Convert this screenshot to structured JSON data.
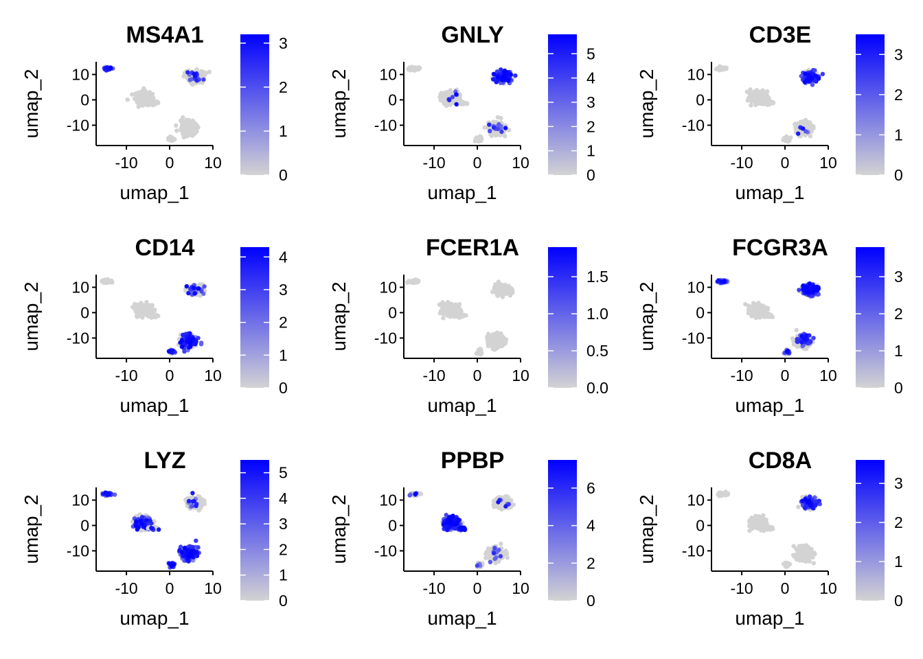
{
  "chart_data": [
    {
      "type": "scatter",
      "title": "MS4A1",
      "xlabel": "umap_1",
      "ylabel": "umap_2",
      "xlim": [
        -17,
        10
      ],
      "ylim": [
        -18,
        15
      ],
      "xticks": [
        -10,
        0,
        10
      ],
      "yticks": [
        -10,
        0,
        10
      ],
      "legend": {
        "type": "colorbar",
        "position": "right",
        "low_color": "#D3D3D3",
        "high_color": "#0000FF",
        "min": 0,
        "max": 3.2,
        "ticks": [
          0,
          1,
          2,
          3
        ]
      },
      "expression_clusters": [
        {
          "cluster": "top-left",
          "level": 0.9
        },
        {
          "cluster": "top-right",
          "level": 0.05
        },
        {
          "cluster": "center",
          "level": 0
        },
        {
          "cluster": "bottom-right",
          "level": 0
        },
        {
          "cluster": "bottom-small",
          "level": 0
        }
      ]
    },
    {
      "type": "scatter",
      "title": "GNLY",
      "xlabel": "umap_1",
      "ylabel": "umap_2",
      "xlim": [
        -17,
        10
      ],
      "ylim": [
        -18,
        15
      ],
      "xticks": [
        -10,
        0,
        10
      ],
      "yticks": [
        -10,
        0,
        10
      ],
      "legend": {
        "type": "colorbar",
        "position": "right",
        "low_color": "#D3D3D3",
        "high_color": "#0000FF",
        "min": 0,
        "max": 5.8,
        "ticks": [
          0,
          1,
          2,
          3,
          4,
          5
        ]
      },
      "expression_clusters": [
        {
          "cluster": "top-left",
          "level": 0
        },
        {
          "cluster": "top-right",
          "level": 0.7
        },
        {
          "cluster": "center",
          "level": 0.02
        },
        {
          "cluster": "bottom-right",
          "level": 0.05
        },
        {
          "cluster": "bottom-small",
          "level": 0
        }
      ]
    },
    {
      "type": "scatter",
      "title": "CD3E",
      "xlabel": "umap_1",
      "ylabel": "umap_2",
      "xlim": [
        -17,
        10
      ],
      "ylim": [
        -18,
        15
      ],
      "xticks": [
        -10,
        0,
        10
      ],
      "yticks": [
        -10,
        0,
        10
      ],
      "legend": {
        "type": "colorbar",
        "position": "right",
        "low_color": "#D3D3D3",
        "high_color": "#0000FF",
        "min": 0,
        "max": 3.5,
        "ticks": [
          0,
          1,
          2,
          3
        ]
      },
      "expression_clusters": [
        {
          "cluster": "top-left",
          "level": 0
        },
        {
          "cluster": "top-right",
          "level": 0.55
        },
        {
          "cluster": "center",
          "level": 0
        },
        {
          "cluster": "bottom-right",
          "level": 0.03
        },
        {
          "cluster": "bottom-small",
          "level": 0
        }
      ]
    },
    {
      "type": "scatter",
      "title": "CD14",
      "xlabel": "umap_1",
      "ylabel": "umap_2",
      "xlim": [
        -17,
        10
      ],
      "ylim": [
        -18,
        15
      ],
      "xticks": [
        -10,
        0,
        10
      ],
      "yticks": [
        -10,
        0,
        10
      ],
      "legend": {
        "type": "colorbar",
        "position": "right",
        "low_color": "#D3D3D3",
        "high_color": "#0000FF",
        "min": 0,
        "max": 4.3,
        "ticks": [
          0,
          1,
          2,
          3,
          4
        ]
      },
      "expression_clusters": [
        {
          "cluster": "top-left",
          "level": 0
        },
        {
          "cluster": "top-right",
          "level": 0.1
        },
        {
          "cluster": "center",
          "level": 0
        },
        {
          "cluster": "bottom-right",
          "level": 0.6
        },
        {
          "cluster": "bottom-small",
          "level": 0.3
        }
      ]
    },
    {
      "type": "scatter",
      "title": "FCER1A",
      "xlabel": "umap_1",
      "ylabel": "umap_2",
      "xlim": [
        -17,
        10
      ],
      "ylim": [
        -18,
        15
      ],
      "xticks": [
        -10,
        0,
        10
      ],
      "yticks": [
        -10,
        0,
        10
      ],
      "legend": {
        "type": "colorbar",
        "position": "right",
        "low_color": "#D3D3D3",
        "high_color": "#0000FF",
        "min": 0,
        "max": 1.9,
        "ticks": [
          "0.0",
          "0.5",
          "1.0",
          "1.5"
        ]
      },
      "expression_clusters": [
        {
          "cluster": "top-left",
          "level": 0
        },
        {
          "cluster": "top-right",
          "level": 0
        },
        {
          "cluster": "center",
          "level": 0
        },
        {
          "cluster": "bottom-right",
          "level": 0
        },
        {
          "cluster": "bottom-small",
          "level": 0
        }
      ]
    },
    {
      "type": "scatter",
      "title": "FCGR3A",
      "xlabel": "umap_1",
      "ylabel": "umap_2",
      "xlim": [
        -17,
        10
      ],
      "ylim": [
        -18,
        15
      ],
      "xticks": [
        -10,
        0,
        10
      ],
      "yticks": [
        -10,
        0,
        10
      ],
      "legend": {
        "type": "colorbar",
        "position": "right",
        "low_color": "#D3D3D3",
        "high_color": "#0000FF",
        "min": 0,
        "max": 3.8,
        "ticks": [
          0,
          1,
          2,
          3
        ]
      },
      "expression_clusters": [
        {
          "cluster": "top-left",
          "level": 0.3
        },
        {
          "cluster": "top-right",
          "level": 0.65
        },
        {
          "cluster": "center",
          "level": 0
        },
        {
          "cluster": "bottom-right",
          "level": 0.15
        },
        {
          "cluster": "bottom-small",
          "level": 0.3
        }
      ]
    },
    {
      "type": "scatter",
      "title": "LYZ",
      "xlabel": "umap_1",
      "ylabel": "umap_2",
      "xlim": [
        -17,
        10
      ],
      "ylim": [
        -18,
        15
      ],
      "xticks": [
        -10,
        0,
        10
      ],
      "yticks": [
        -10,
        0,
        10
      ],
      "legend": {
        "type": "colorbar",
        "position": "right",
        "low_color": "#D3D3D3",
        "high_color": "#0000FF",
        "min": 0,
        "max": 5.5,
        "ticks": [
          0,
          1,
          2,
          3,
          4,
          5
        ]
      },
      "expression_clusters": [
        {
          "cluster": "top-left",
          "level": 0.6
        },
        {
          "cluster": "top-right",
          "level": 0.05
        },
        {
          "cluster": "center",
          "level": 0.15
        },
        {
          "cluster": "bottom-right",
          "level": 0.75
        },
        {
          "cluster": "bottom-small",
          "level": 0.6
        }
      ]
    },
    {
      "type": "scatter",
      "title": "PPBP",
      "xlabel": "umap_1",
      "ylabel": "umap_2",
      "xlim": [
        -17,
        10
      ],
      "ylim": [
        -18,
        15
      ],
      "xticks": [
        -10,
        0,
        10
      ],
      "yticks": [
        -10,
        0,
        10
      ],
      "legend": {
        "type": "colorbar",
        "position": "right",
        "low_color": "#D3D3D3",
        "high_color": "#0000FF",
        "min": 0,
        "max": 7.5,
        "ticks": [
          0,
          2,
          4,
          6
        ]
      },
      "expression_clusters": [
        {
          "cluster": "top-left",
          "level": 0.1
        },
        {
          "cluster": "top-right",
          "level": 0.02
        },
        {
          "cluster": "center",
          "level": 0.8
        },
        {
          "cluster": "bottom-right",
          "level": 0.05
        },
        {
          "cluster": "bottom-small",
          "level": 0.1
        }
      ]
    },
    {
      "type": "scatter",
      "title": "CD8A",
      "xlabel": "umap_1",
      "ylabel": "umap_2",
      "xlim": [
        -17,
        10
      ],
      "ylim": [
        -18,
        15
      ],
      "xticks": [
        -10,
        0,
        10
      ],
      "yticks": [
        -10,
        0,
        10
      ],
      "legend": {
        "type": "colorbar",
        "position": "right",
        "low_color": "#D3D3D3",
        "high_color": "#0000FF",
        "min": 0,
        "max": 3.6,
        "ticks": [
          0,
          1,
          2,
          3
        ]
      },
      "expression_clusters": [
        {
          "cluster": "top-left",
          "level": 0
        },
        {
          "cluster": "top-right",
          "level": 0.25
        },
        {
          "cluster": "center",
          "level": 0
        },
        {
          "cluster": "bottom-right",
          "level": 0
        },
        {
          "cluster": "bottom-small",
          "level": 0
        }
      ]
    }
  ]
}
